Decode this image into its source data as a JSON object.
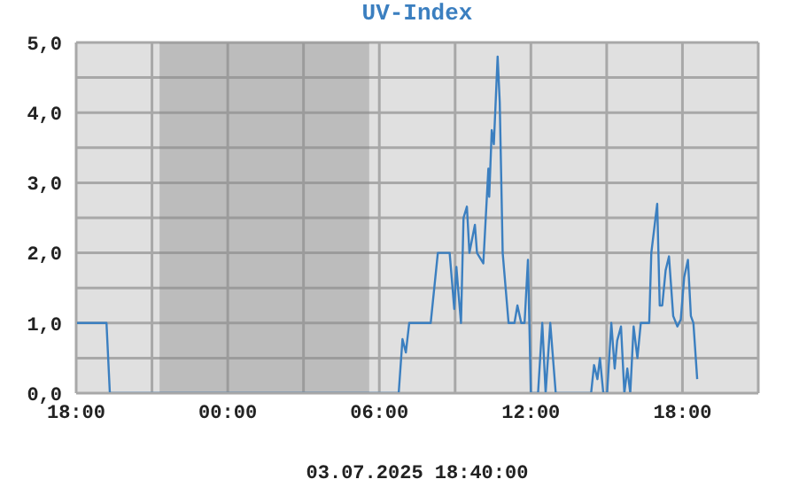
{
  "chart_data": {
    "type": "line",
    "title": "UV-Index",
    "annotations": [
      "03.07.2025 18:40:00"
    ],
    "x": [
      "2025-07-02T18:00",
      "2025-07-02T19:12",
      "2025-07-02T19:20",
      "2025-07-03T06:46",
      "2025-07-03T06:55",
      "2025-07-03T07:03",
      "2025-07-03T07:11",
      "2025-07-03T08:02",
      "2025-07-03T08:19",
      "2025-07-03T08:47",
      "2025-07-03T08:58",
      "2025-07-03T09:03",
      "2025-07-03T09:07",
      "2025-07-03T09:14",
      "2025-07-03T09:20",
      "2025-07-03T09:28",
      "2025-07-03T09:34",
      "2025-07-03T09:47",
      "2025-07-03T09:52",
      "2025-07-03T10:07",
      "2025-07-03T10:19",
      "2025-07-03T10:21",
      "2025-07-03T10:27",
      "2025-07-03T10:32",
      "2025-07-03T10:41",
      "2025-07-03T10:46",
      "2025-07-03T10:53",
      "2025-07-03T11:07",
      "2025-07-03T11:21",
      "2025-07-03T11:28",
      "2025-07-03T11:37",
      "2025-07-03T11:45",
      "2025-07-03T11:53",
      "2025-07-03T12:00",
      "2025-07-03T12:17",
      "2025-07-03T12:27",
      "2025-07-03T12:35",
      "2025-07-03T12:46",
      "2025-07-03T12:59",
      "2025-07-03T14:23",
      "2025-07-03T14:30",
      "2025-07-03T14:38",
      "2025-07-03T14:44",
      "2025-07-03T14:52",
      "2025-07-03T15:01",
      "2025-07-03T15:11",
      "2025-07-03T15:19",
      "2025-07-03T15:25",
      "2025-07-03T15:34",
      "2025-07-03T15:42",
      "2025-07-03T15:49",
      "2025-07-03T15:56",
      "2025-07-03T16:04",
      "2025-07-03T16:13",
      "2025-07-03T16:21",
      "2025-07-03T16:41",
      "2025-07-03T16:46",
      "2025-07-03T17:00",
      "2025-07-03T17:06",
      "2025-07-03T17:12",
      "2025-07-03T17:20",
      "2025-07-03T17:28",
      "2025-07-03T17:38",
      "2025-07-03T17:48",
      "2025-07-03T17:56",
      "2025-07-03T18:04",
      "2025-07-03T18:13",
      "2025-07-03T18:20",
      "2025-07-03T18:26",
      "2025-07-03T18:35"
    ],
    "series": [
      {
        "color": "#3b7fc0",
        "values": [
          1.0,
          1.0,
          0,
          0,
          0.77,
          0.58,
          1.0,
          1.0,
          2.0,
          2.0,
          1.2,
          1.8,
          1.5,
          1.0,
          2.5,
          2.66,
          2.0,
          2.4,
          2.0,
          1.85,
          3.2,
          2.8,
          3.75,
          3.55,
          4.8,
          4.15,
          2.0,
          1.0,
          1.0,
          1.25,
          1.0,
          1.0,
          1.9,
          0,
          0,
          1.0,
          0,
          1.0,
          0,
          0,
          0.4,
          0.2,
          0.5,
          0,
          0,
          1.0,
          0.35,
          0.75,
          0.95,
          0,
          0.35,
          0,
          0.95,
          0.5,
          1.0,
          1.0,
          2.0,
          2.7,
          1.25,
          1.25,
          1.75,
          1.95,
          1.1,
          0.95,
          1.05,
          1.65,
          1.9,
          1.1,
          1.0,
          0.2
        ]
      }
    ],
    "xlim": [
      "2025-07-02T18:00",
      "2025-07-03T21:00"
    ],
    "xticks": [
      {
        "value": "2025-07-02T18:00",
        "label": "18:00"
      },
      {
        "value": "2025-07-02T21:00",
        "label": null
      },
      {
        "value": "2025-07-03T00:00",
        "label": "00:00"
      },
      {
        "value": "2025-07-03T03:00",
        "label": null
      },
      {
        "value": "2025-07-03T06:00",
        "label": "06:00"
      },
      {
        "value": "2025-07-03T09:00",
        "label": null
      },
      {
        "value": "2025-07-03T12:00",
        "label": "12:00"
      },
      {
        "value": "2025-07-03T15:00",
        "label": null
      },
      {
        "value": "2025-07-03T18:00",
        "label": "18:00"
      },
      {
        "value": "2025-07-03T21:00",
        "label": null
      }
    ],
    "ylim": [
      0,
      5
    ],
    "yticks": [
      {
        "value": 0,
        "label": "0,0"
      },
      {
        "value": 0.5,
        "label": null
      },
      {
        "value": 1,
        "label": "1,0"
      },
      {
        "value": 1.5,
        "label": null
      },
      {
        "value": 2,
        "label": "2,0"
      },
      {
        "value": 2.5,
        "label": null
      },
      {
        "value": 3,
        "label": "3,0"
      },
      {
        "value": 3.5,
        "label": null
      },
      {
        "value": 4,
        "label": "4,0"
      },
      {
        "value": 4.5,
        "label": null
      },
      {
        "value": 5,
        "label": "5,0"
      }
    ],
    "bands": [
      {
        "axis": "x",
        "from": "2025-07-02T21:18",
        "to": "2025-07-03T05:36",
        "color": "#888888"
      }
    ],
    "grid": true,
    "marker": "none",
    "line_style": "solid"
  }
}
